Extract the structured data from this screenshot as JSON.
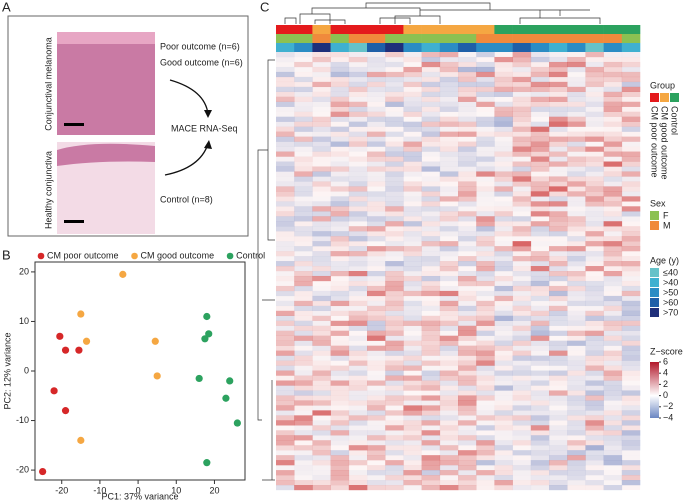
{
  "panels": {
    "a": "A",
    "b": "B",
    "c": "C"
  },
  "panel_a": {
    "image_labels": [
      "Conjunctival melanoma",
      "Healthy conjunctiva"
    ],
    "poor": "Poor outcome (n=6)",
    "good": "Good outcome (n=6)",
    "method": "MACE RNA-Seq",
    "control": "Control (n=8)"
  },
  "chart_data": {
    "type": "scatter",
    "xlabel": "PC1: 37% variance",
    "ylabel": "PC2: 12% variance",
    "xlim": [
      -27,
      28
    ],
    "ylim": [
      -22,
      22
    ],
    "xticks": [
      -20,
      -10,
      0,
      10,
      20
    ],
    "yticks": [
      -20,
      -10,
      0,
      10,
      20
    ],
    "series": [
      {
        "name": "CM poor outcome",
        "color": "#d62728",
        "x": [
          -20.5,
          -19,
          -15.5,
          -22,
          -19,
          -25
        ],
        "values": [
          7,
          4.2,
          4.2,
          -4,
          -8,
          -20.3
        ]
      },
      {
        "name": "CM good outcome",
        "color": "#f5a742",
        "x": [
          -4,
          -15,
          -13.5,
          4.5,
          5,
          -15
        ],
        "values": [
          19.5,
          11.5,
          6,
          6,
          -1,
          -14
        ]
      },
      {
        "name": "Control",
        "color": "#2ca25f",
        "x": [
          18,
          18.5,
          17.5,
          16,
          24,
          23,
          26,
          18
        ],
        "values": [
          11,
          7.5,
          6.5,
          -1.5,
          -2,
          -5.5,
          -10.5,
          -18.5
        ]
      }
    ]
  },
  "heatmap": {
    "legend": {
      "group": {
        "title": "Group",
        "items": [
          {
            "name": "CM poor outcome",
            "color": "#e41a1c"
          },
          {
            "name": "CM good outcome",
            "color": "#f5a742"
          },
          {
            "name": "Control",
            "color": "#2ca25f"
          }
        ]
      },
      "sex": {
        "title": "Sex",
        "items": [
          {
            "name": "F",
            "color": "#8cc152"
          },
          {
            "name": "M",
            "color": "#f08a3c"
          }
        ]
      },
      "age": {
        "title": "Age (y)",
        "items": [
          {
            "name": "≤40",
            "color": "#66c2c9"
          },
          {
            "name": ">40",
            "color": "#3fb0d0"
          },
          {
            "name": ">50",
            "color": "#2b8cc4"
          },
          {
            "name": ">60",
            "color": "#1f5fa8"
          },
          {
            "name": ">70",
            "color": "#1f2f7a"
          }
        ]
      },
      "zscore": {
        "title": "Z−score",
        "ticks": [
          {
            "value": 6,
            "label": "6"
          },
          {
            "value": 4,
            "label": "4"
          },
          {
            "value": 2,
            "label": "2"
          },
          {
            "value": 0,
            "label": "0"
          },
          {
            "value": -2,
            "label": "−2"
          },
          {
            "value": -4,
            "label": "−4"
          }
        ]
      }
    },
    "annotations": {
      "group": [
        0,
        0,
        1,
        0,
        0,
        0,
        0,
        1,
        1,
        1,
        1,
        1,
        2,
        2,
        2,
        2,
        2,
        2,
        2,
        2
      ],
      "sex": [
        0,
        0,
        1,
        0,
        1,
        1,
        0,
        0,
        0,
        0,
        0,
        1,
        1,
        1,
        1,
        1,
        1,
        1,
        1,
        0
      ],
      "age": [
        1,
        2,
        4,
        1,
        0,
        3,
        4,
        2,
        1,
        2,
        3,
        2,
        2,
        3,
        2,
        1,
        2,
        0,
        2,
        1
      ]
    }
  }
}
